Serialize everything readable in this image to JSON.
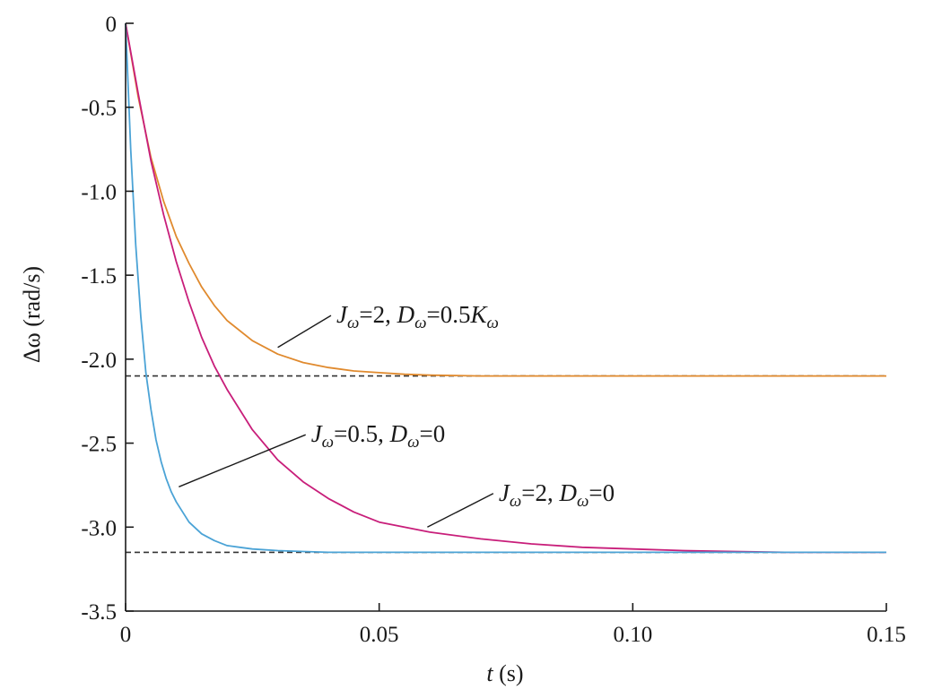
{
  "chart_data": {
    "type": "line",
    "xlabel": {
      "symbol": "t",
      "unit": "(s)"
    },
    "ylabel": {
      "symbol": "Δω",
      "unit": "(rad/s)"
    },
    "xlim": [
      0,
      0.15
    ],
    "ylim": [
      -3.5,
      0
    ],
    "x_ticks": [
      {
        "value": 0,
        "label": "0"
      },
      {
        "value": 0.05,
        "label": "0.05"
      },
      {
        "value": 0.1,
        "label": "0.10"
      },
      {
        "value": 0.15,
        "label": "0.15"
      }
    ],
    "y_ticks": [
      {
        "value": 0,
        "label": "0"
      },
      {
        "value": -0.5,
        "label": "-0.5"
      },
      {
        "value": -1.0,
        "label": "-1.0"
      },
      {
        "value": -1.5,
        "label": "-1.5"
      },
      {
        "value": -2.0,
        "label": "-2.0"
      },
      {
        "value": -2.5,
        "label": "-2.5"
      },
      {
        "value": -3.0,
        "label": "-3.0"
      },
      {
        "value": -3.5,
        "label": "-3.5"
      }
    ],
    "grid": false,
    "reference_lines": [
      {
        "y": -2.1,
        "style": "dashed",
        "color": "#333333"
      },
      {
        "y": -3.15,
        "style": "dashed",
        "color": "#333333"
      }
    ],
    "series": [
      {
        "color": "#E08A2E",
        "x": [
          0,
          0.0025,
          0.005,
          0.0075,
          0.01,
          0.0125,
          0.015,
          0.0175,
          0.02,
          0.025,
          0.03,
          0.035,
          0.04,
          0.045,
          0.05,
          0.055,
          0.06,
          0.07,
          0.08,
          0.09,
          0.1,
          0.12,
          0.15
        ],
        "y": [
          0,
          -0.44,
          -0.8,
          -1.06,
          -1.27,
          -1.43,
          -1.57,
          -1.68,
          -1.77,
          -1.89,
          -1.97,
          -2.02,
          -2.05,
          -2.07,
          -2.08,
          -2.09,
          -2.095,
          -2.1,
          -2.1,
          -2.1,
          -2.1,
          -2.1,
          -2.1
        ]
      },
      {
        "color": "#C81E7A",
        "x": [
          0,
          0.0025,
          0.005,
          0.0075,
          0.01,
          0.0125,
          0.015,
          0.0175,
          0.02,
          0.025,
          0.03,
          0.035,
          0.04,
          0.045,
          0.05,
          0.06,
          0.07,
          0.08,
          0.09,
          0.1,
          0.11,
          0.12,
          0.13,
          0.14,
          0.15
        ],
        "y": [
          0,
          -0.42,
          -0.82,
          -1.14,
          -1.42,
          -1.66,
          -1.87,
          -2.04,
          -2.18,
          -2.42,
          -2.6,
          -2.73,
          -2.83,
          -2.91,
          -2.97,
          -3.03,
          -3.07,
          -3.1,
          -3.12,
          -3.13,
          -3.14,
          -3.145,
          -3.15,
          -3.15,
          -3.15
        ]
      },
      {
        "color": "#4BA3D6",
        "x": [
          0,
          0.001,
          0.002,
          0.003,
          0.004,
          0.005,
          0.006,
          0.007,
          0.008,
          0.009,
          0.01,
          0.0125,
          0.015,
          0.0175,
          0.02,
          0.0225,
          0.025,
          0.03,
          0.035,
          0.04,
          0.05,
          0.06,
          0.08,
          0.1,
          0.15
        ],
        "y": [
          0,
          -0.75,
          -1.32,
          -1.75,
          -2.08,
          -2.3,
          -2.48,
          -2.61,
          -2.71,
          -2.79,
          -2.85,
          -2.97,
          -3.04,
          -3.08,
          -3.11,
          -3.12,
          -3.13,
          -3.14,
          -3.145,
          -3.15,
          -3.15,
          -3.15,
          -3.15,
          -3.15,
          -3.15
        ]
      }
    ],
    "annotations": [
      {
        "j_value": "2",
        "d_value": "0.5",
        "d_suffix": "K",
        "pointer": {
          "x": 0.03,
          "y": -1.93
        },
        "anchor": {
          "x": 0.0405,
          "y": -1.74
        }
      },
      {
        "j_value": "0.5",
        "d_value": "0",
        "d_suffix": "",
        "pointer": {
          "x": 0.0105,
          "y": -2.76
        },
        "anchor": {
          "x": 0.0355,
          "y": -2.45
        }
      },
      {
        "j_value": "2",
        "d_value": "0",
        "d_suffix": "",
        "pointer": {
          "x": 0.0595,
          "y": -3.0
        },
        "anchor": {
          "x": 0.0725,
          "y": -2.8
        }
      }
    ]
  }
}
